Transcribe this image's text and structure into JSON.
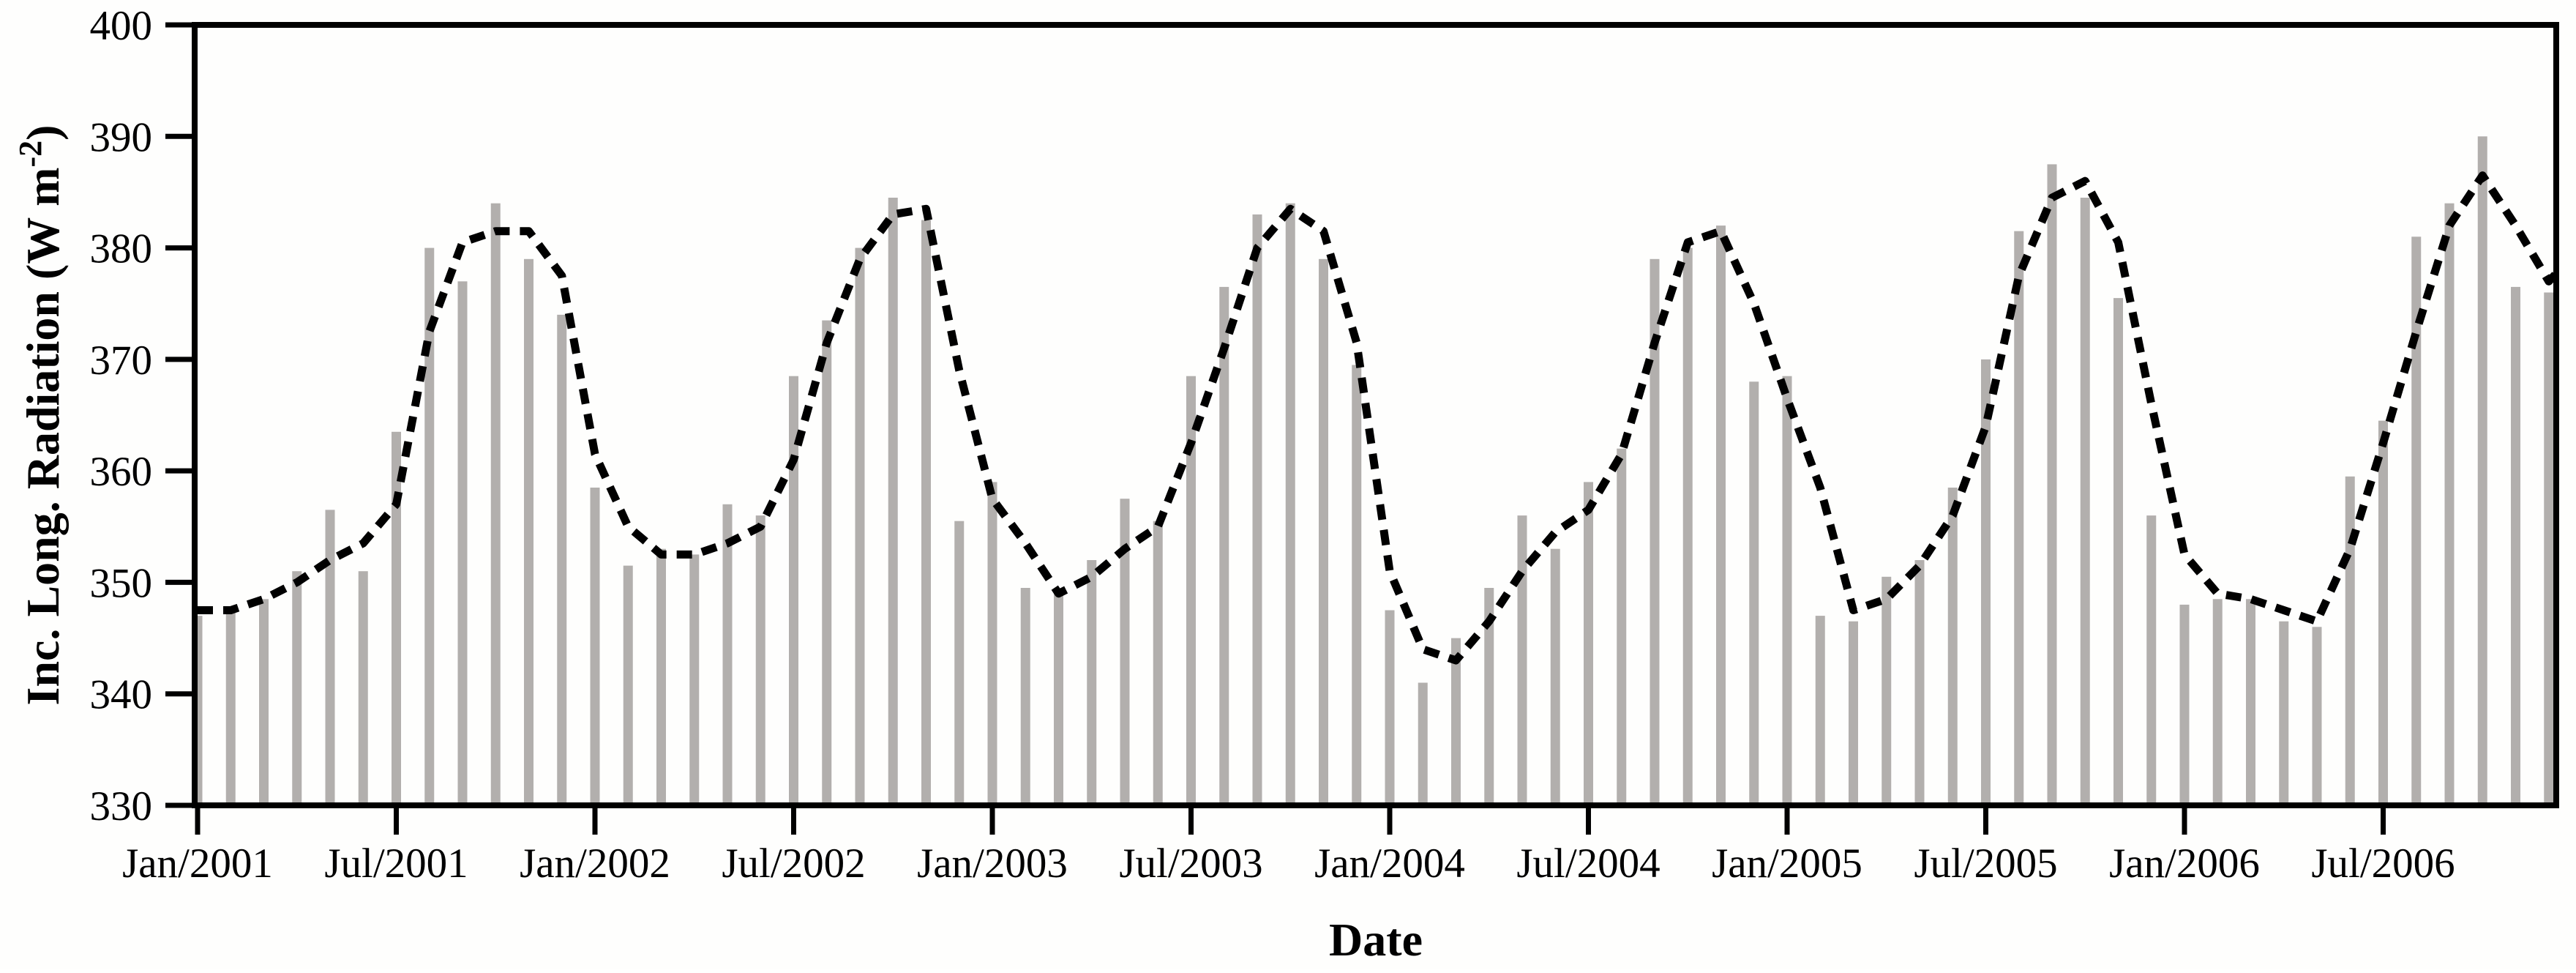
{
  "chart_data": {
    "type": "bar",
    "title": "",
    "xlabel": "Date",
    "ylabel": "Inc. Long. Radiation (W m⁻²)",
    "ylabel_parts": {
      "prefix": "Inc. Long. Radiation (W m",
      "superscript": "-2",
      "suffix": ")"
    },
    "ylim": [
      330,
      400
    ],
    "yticks": [
      "330",
      "340",
      "350",
      "360",
      "370",
      "380",
      "390",
      "400"
    ],
    "grid": false,
    "legend_position": "none",
    "xtick_labels": [
      "Jan/2001",
      "Jul/2001",
      "Jan/2002",
      "Jul/2002",
      "Jan/2003",
      "Jul/2003",
      "Jan/2004",
      "Jul/2004",
      "Jan/2005",
      "Jul/2005",
      "Jan/2006",
      "Jul/2006"
    ],
    "xtick_positions": [
      0,
      6,
      12,
      18,
      24,
      30,
      36,
      42,
      48,
      54,
      60,
      66
    ],
    "categories": [
      "Jan/2001",
      "Feb/2001",
      "Mar/2001",
      "Apr/2001",
      "May/2001",
      "Jun/2001",
      "Jul/2001",
      "Aug/2001",
      "Sep/2001",
      "Oct/2001",
      "Nov/2001",
      "Dec/2001",
      "Jan/2002",
      "Feb/2002",
      "Mar/2002",
      "Apr/2002",
      "May/2002",
      "Jun/2002",
      "Jul/2002",
      "Aug/2002",
      "Sep/2002",
      "Oct/2002",
      "Nov/2002",
      "Dec/2002",
      "Jan/2003",
      "Feb/2003",
      "Mar/2003",
      "Apr/2003",
      "May/2003",
      "Jun/2003",
      "Jul/2003",
      "Aug/2003",
      "Sep/2003",
      "Oct/2003",
      "Nov/2003",
      "Dec/2003",
      "Jan/2004",
      "Feb/2004",
      "Mar/2004",
      "Apr/2004",
      "May/2004",
      "Jun/2004",
      "Jul/2004",
      "Aug/2004",
      "Sep/2004",
      "Oct/2004",
      "Nov/2004",
      "Dec/2004",
      "Jan/2005",
      "Feb/2005",
      "Mar/2005",
      "Apr/2005",
      "May/2005",
      "Jun/2005",
      "Jul/2005",
      "Aug/2005",
      "Sep/2005",
      "Oct/2005",
      "Nov/2005",
      "Dec/2005",
      "Jan/2006",
      "Feb/2006",
      "Mar/2006",
      "Apr/2006",
      "May/2006",
      "Jun/2006",
      "Jul/2006",
      "Aug/2006",
      "Sep/2006",
      "Oct/2006",
      "Nov/2006",
      "Dec/2006"
    ],
    "series": [
      {
        "name": "monthly-incoming-longwave-radiation-bars",
        "type": "bar",
        "color": "#b2afad",
        "values": [
          347,
          347.5,
          348.5,
          351,
          356.5,
          351,
          363.5,
          380,
          377,
          384,
          379,
          374,
          358.5,
          351.5,
          353,
          352.5,
          357,
          356,
          368.5,
          373.5,
          380,
          384.5,
          382.5,
          355.5,
          359,
          349.5,
          349,
          352,
          357.5,
          355.5,
          368.5,
          376.5,
          383,
          384,
          379,
          369.5,
          347.5,
          341,
          345,
          349.5,
          356,
          353,
          359,
          362,
          379,
          380,
          382,
          368,
          368.5,
          347,
          346.5,
          350.5,
          352,
          358.5,
          370,
          381.5,
          387.5,
          384.5,
          375.5,
          356,
          348,
          348.5,
          348.5,
          346.5,
          346,
          359.5,
          364.5,
          381,
          384,
          390,
          376.5,
          376
        ]
      },
      {
        "name": "smoothed-trend-dashed-line",
        "type": "line",
        "color": "#000000",
        "dash": [
          21,
          14
        ],
        "stroke_width": 11,
        "values": [
          347.5,
          347.5,
          348.5,
          350,
          352,
          353.5,
          357,
          372.5,
          380.5,
          381.5,
          381.5,
          377.5,
          361.5,
          355,
          352.5,
          352.5,
          353.5,
          355,
          361,
          371.5,
          379,
          383,
          383.5,
          369,
          357.5,
          353.5,
          349,
          350.5,
          353,
          355,
          362.5,
          371,
          380,
          383.5,
          381.5,
          371.5,
          351,
          344,
          343,
          346.5,
          351,
          354.5,
          356.5,
          361.5,
          371.5,
          380.5,
          381.5,
          375,
          366.5,
          358.5,
          347.5,
          348.5,
          351.5,
          356,
          364,
          377.5,
          384.5,
          386,
          380.5,
          366,
          352.5,
          349,
          348.5,
          347.5,
          346.5,
          353,
          362.5,
          372.5,
          382,
          386.5,
          382,
          377
        ]
      }
    ]
  },
  "style": {
    "frame_color": "#000000",
    "background": "#fefefd",
    "bar_color": "#b2afad",
    "text_color": "#000000"
  }
}
